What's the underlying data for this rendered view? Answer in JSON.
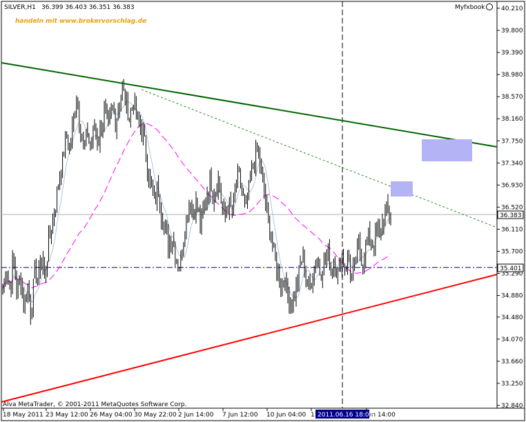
{
  "header": {
    "symbol": "SILVER,H1",
    "ohlc": "36.399 36.403 36.351 36.383",
    "promo": "handeln mit www.brokervorschlag.de",
    "brand": "Myfxbook",
    "footer": "Alva MetaTrader, © 2001-2011 MetaQuotes Software Corp."
  },
  "chart_data": {
    "type": "candlestick",
    "yaxis": {
      "range": [
        32.84,
        40.21
      ],
      "ticks": [
        "40.210",
        "39.800",
        "39.390",
        "38.980",
        "38.570",
        "38.160",
        "37.750",
        "37.340",
        "36.930",
        "36.520",
        "36.110",
        "35.700",
        "35.290",
        "34.880",
        "34.480",
        "34.070",
        "33.660",
        "33.250",
        "32.840"
      ]
    },
    "xaxis": {
      "tick_labels": [
        "18 May 2011",
        "23 May 12:00",
        "26 May 04:00",
        "30 May 22:00",
        "2 Jun 14:00",
        "7 Jun 12:00",
        "10 Jun 04:00",
        "1",
        "Jun 14:00"
      ],
      "crosshair_label": "2011.06.16 18:00"
    },
    "current_price": "36.383",
    "crosshair_price": "35.401",
    "price_points": [
      35.0,
      35.4,
      35.0,
      35.6,
      34.9,
      35.3,
      34.6,
      35.1,
      34.5,
      35.3,
      35.2,
      35.6,
      35.2,
      35.9,
      36.2,
      36.6,
      37.1,
      37.4,
      37.9,
      37.6,
      38.1,
      38.6,
      38.0,
      37.6,
      37.9,
      37.6,
      38.1,
      37.7,
      38.0,
      38.3,
      38.0,
      38.4,
      38.1,
      38.5,
      38.7,
      38.4,
      38.2,
      38.5,
      38.2,
      38.0,
      37.8,
      37.3,
      36.9,
      36.6,
      36.9,
      36.4,
      36.1,
      35.8,
      36.0,
      35.6,
      35.4,
      35.8,
      36.3,
      36.7,
      36.4,
      36.6,
      36.2,
      36.5,
      36.8,
      37.0,
      36.7,
      37.1,
      36.6,
      36.3,
      36.6,
      36.4,
      36.9,
      37.1,
      36.7,
      36.5,
      36.9,
      37.3,
      37.6,
      37.3,
      36.9,
      36.4,
      36.0,
      35.6,
      35.3,
      35.0,
      35.2,
      34.8,
      34.7,
      35.0,
      35.3,
      35.6,
      35.2,
      35.0,
      35.3,
      35.6,
      35.3,
      35.5,
      35.7,
      35.4,
      35.5,
      35.3,
      35.6,
      35.4,
      35.6,
      35.2,
      35.5,
      35.8,
      35.5,
      35.8,
      36.0,
      35.8,
      36.1,
      36.0,
      36.3,
      36.5,
      36.4
    ],
    "series": [
      {
        "name": "",
        "color": "#000000"
      },
      {
        "name": "",
        "color": "#b0c4de"
      },
      {
        "name": "",
        "color": "#ff00ff"
      },
      {
        "name": "",
        "color": "#006400"
      },
      {
        "name": "",
        "color": "#ff0000"
      }
    ]
  }
}
